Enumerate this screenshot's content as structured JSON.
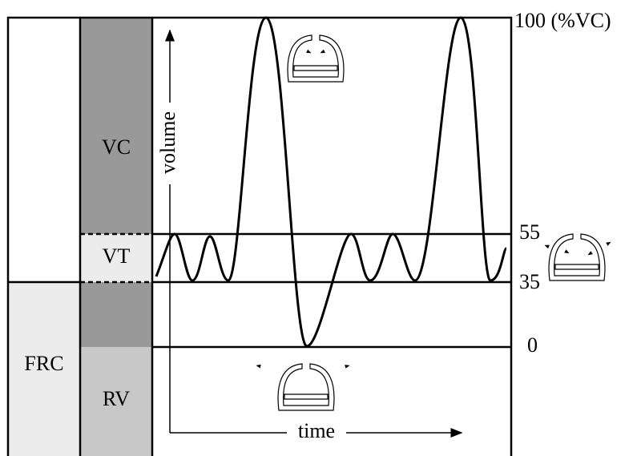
{
  "blocks": {
    "vc": "VC",
    "vt": "VT",
    "frc": "FRC",
    "rv": "RV"
  },
  "levels": [
    {
      "value": 100,
      "label": "100 (%VC)"
    },
    {
      "value": 55,
      "label": "55"
    },
    {
      "value": 35,
      "label": "35"
    },
    {
      "value": 0,
      "label": "0"
    }
  ],
  "axes": {
    "y": "volume",
    "x": "time"
  }
}
